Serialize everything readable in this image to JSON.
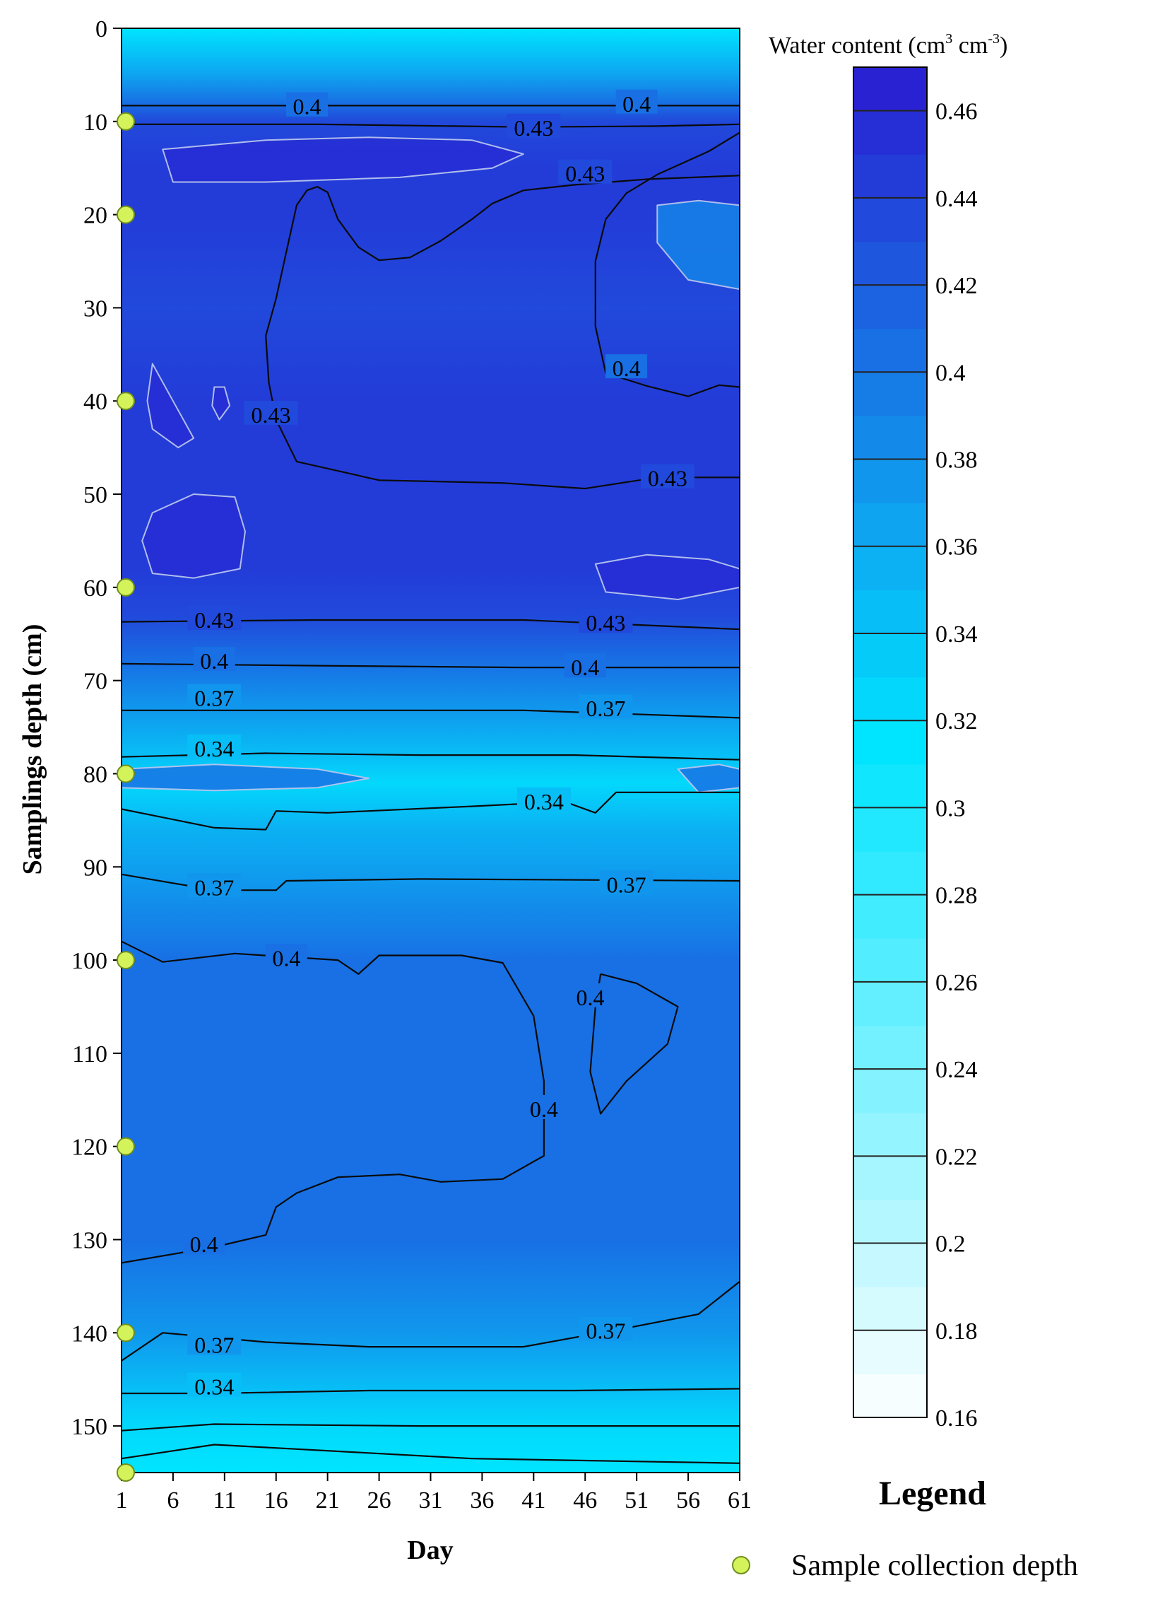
{
  "chart_data": {
    "type": "heatmap",
    "xlabel": "Day",
    "ylabel": "Samplings depth (cm)",
    "x_ticks": [
      1,
      6,
      11,
      16,
      21,
      26,
      31,
      36,
      41,
      46,
      51,
      56,
      61
    ],
    "y_ticks": [
      0,
      10,
      20,
      30,
      40,
      50,
      60,
      70,
      80,
      90,
      100,
      110,
      120,
      130,
      140,
      150
    ],
    "xlim": [
      1,
      61
    ],
    "ylim": [
      0,
      155
    ],
    "y_inverted": true,
    "colorbar": {
      "title": "Water content (cm³ cm⁻³)",
      "title_main": "Water content (cm",
      "title_sup1": "3",
      "title_mid": " cm",
      "title_sup2": "-3",
      "title_end": ")",
      "min": 0.16,
      "max": 0.47,
      "step": 0.01,
      "tick_values": [
        0.16,
        0.18,
        0.2,
        0.22,
        0.24,
        0.26,
        0.28,
        0.3,
        0.32,
        0.34,
        0.36,
        0.38,
        0.4,
        0.42,
        0.44,
        0.46
      ],
      "tick_labels": [
        "0.16",
        "0.18",
        "0.2",
        "0.22",
        "0.24",
        "0.26",
        "0.28",
        "0.3",
        "0.32",
        "0.34",
        "0.36",
        "0.38",
        "0.4",
        "0.42",
        "0.44",
        "0.46"
      ],
      "color_low": "#ffffff",
      "color_mid": "#00e5ff",
      "color_high": "#2a1bd0"
    },
    "depth_profile": [
      {
        "depth": 0,
        "value": 0.31
      },
      {
        "depth": 2,
        "value": 0.33
      },
      {
        "depth": 5,
        "value": 0.36
      },
      {
        "depth": 8,
        "value": 0.4
      },
      {
        "depth": 10,
        "value": 0.43
      },
      {
        "depth": 15,
        "value": 0.445
      },
      {
        "depth": 20,
        "value": 0.44
      },
      {
        "depth": 30,
        "value": 0.435
      },
      {
        "depth": 40,
        "value": 0.44
      },
      {
        "depth": 50,
        "value": 0.44
      },
      {
        "depth": 58,
        "value": 0.445
      },
      {
        "depth": 63,
        "value": 0.43
      },
      {
        "depth": 68,
        "value": 0.4
      },
      {
        "depth": 73,
        "value": 0.37
      },
      {
        "depth": 78,
        "value": 0.34
      },
      {
        "depth": 81,
        "value": 0.325
      },
      {
        "depth": 86,
        "value": 0.35
      },
      {
        "depth": 92,
        "value": 0.37
      },
      {
        "depth": 100,
        "value": 0.4
      },
      {
        "depth": 110,
        "value": 0.405
      },
      {
        "depth": 120,
        "value": 0.405
      },
      {
        "depth": 130,
        "value": 0.4
      },
      {
        "depth": 140,
        "value": 0.37
      },
      {
        "depth": 146,
        "value": 0.34
      },
      {
        "depth": 150,
        "value": 0.32
      },
      {
        "depth": 155,
        "value": 0.31
      }
    ],
    "contour_lines": [
      {
        "level": 0.4,
        "label": "0.4",
        "points": [
          [
            1,
            8.3
          ],
          [
            61,
            8.3
          ]
        ],
        "labels": [
          {
            "day": 19,
            "depth": 8.4
          },
          {
            "day": 51,
            "depth": 8.1
          }
        ]
      },
      {
        "level": 0.43,
        "label": "0.43",
        "points": [
          [
            1,
            10.3
          ],
          [
            20,
            10.3
          ],
          [
            40,
            10.6
          ],
          [
            53,
            10.5
          ],
          [
            61,
            10.3
          ]
        ],
        "labels": [
          {
            "day": 41,
            "depth": 10.7
          }
        ]
      },
      {
        "level": 0.43,
        "label": "0.43",
        "points": [
          [
            61,
            15.8
          ],
          [
            52,
            16.2
          ],
          [
            45,
            16.8
          ],
          [
            40,
            17.4
          ],
          [
            37,
            18.8
          ],
          [
            35,
            20.5
          ],
          [
            32,
            22.8
          ],
          [
            29,
            24.6
          ],
          [
            26,
            24.9
          ],
          [
            24,
            23.5
          ],
          [
            22,
            20.5
          ],
          [
            21,
            17.6
          ],
          [
            20,
            17.0
          ],
          [
            19,
            17.4
          ],
          [
            18,
            19
          ],
          [
            17,
            24
          ],
          [
            16,
            29
          ],
          [
            15,
            33
          ],
          [
            15.3,
            38
          ],
          [
            16,
            42
          ],
          [
            18,
            46.5
          ],
          [
            26,
            48.5
          ],
          [
            38,
            48.8
          ],
          [
            46,
            49.4
          ],
          [
            53,
            48.2
          ],
          [
            61,
            48.2
          ]
        ],
        "labels": [
          {
            "day": 46,
            "depth": 15.6
          },
          {
            "day": 15.5,
            "depth": 41.5
          },
          {
            "day": 54,
            "depth": 48.3
          }
        ]
      },
      {
        "level": 0.4,
        "label": "0.4",
        "points": [
          [
            61,
            11.2
          ],
          [
            58,
            13.2
          ],
          [
            53,
            15.7
          ],
          [
            50,
            17.7
          ],
          [
            48,
            20.5
          ],
          [
            47,
            25
          ],
          [
            47,
            32
          ],
          [
            48,
            37
          ],
          [
            52,
            38.4
          ],
          [
            56,
            39.5
          ],
          [
            59,
            38.3
          ],
          [
            61,
            38.5
          ]
        ],
        "labels": [
          {
            "day": 50,
            "depth": 36.5
          }
        ]
      },
      {
        "level": 0.43,
        "label": "0.43",
        "points": [
          [
            1,
            63.7
          ],
          [
            20,
            63.5
          ],
          [
            40,
            63.5
          ],
          [
            61,
            64.5
          ]
        ],
        "labels": [
          {
            "day": 10,
            "depth": 63.5
          },
          {
            "day": 48,
            "depth": 63.8
          }
        ]
      },
      {
        "level": 0.4,
        "label": "0.4",
        "points": [
          [
            1,
            68.2
          ],
          [
            20,
            68.4
          ],
          [
            40,
            68.6
          ],
          [
            61,
            68.6
          ]
        ],
        "labels": [
          {
            "day": 10,
            "depth": 67.9
          },
          {
            "day": 46,
            "depth": 68.6
          }
        ]
      },
      {
        "level": 0.37,
        "label": "0.37",
        "points": [
          [
            1,
            73.2
          ],
          [
            20,
            73.2
          ],
          [
            40,
            73.2
          ],
          [
            61,
            74
          ]
        ],
        "labels": [
          {
            "day": 10,
            "depth": 71.9
          },
          {
            "day": 48,
            "depth": 73
          }
        ]
      },
      {
        "level": 0.34,
        "label": "0.34",
        "points": [
          [
            1,
            78.2
          ],
          [
            15,
            77.8
          ],
          [
            30,
            78
          ],
          [
            45,
            78
          ],
          [
            61,
            78.5
          ]
        ],
        "labels": [
          {
            "day": 10,
            "depth": 77.3
          }
        ]
      },
      {
        "level": 0.34,
        "label": "0.34",
        "points": [
          [
            1,
            83.8
          ],
          [
            10,
            85.8
          ],
          [
            15,
            86
          ],
          [
            16,
            84
          ],
          [
            21,
            84.2
          ],
          [
            35,
            83.5
          ],
          [
            44,
            83
          ],
          [
            47,
            84.2
          ],
          [
            49,
            82
          ],
          [
            61,
            82
          ]
        ],
        "labels": [
          {
            "day": 42,
            "depth": 83
          }
        ]
      },
      {
        "level": 0.37,
        "label": "0.37",
        "points": [
          [
            1,
            90.8
          ],
          [
            10,
            92.5
          ],
          [
            16,
            92.5
          ],
          [
            17,
            91.5
          ],
          [
            30,
            91.3
          ],
          [
            46,
            91.4
          ],
          [
            61,
            91.5
          ]
        ],
        "labels": [
          {
            "day": 10,
            "depth": 92.2
          },
          {
            "day": 50,
            "depth": 91.9
          }
        ]
      },
      {
        "level": 0.4,
        "label": "0.4",
        "points": [
          [
            1,
            98
          ],
          [
            5,
            100.2
          ],
          [
            12,
            99.3
          ],
          [
            22,
            100
          ],
          [
            24,
            101.5
          ],
          [
            26,
            99.5
          ],
          [
            34,
            99.5
          ],
          [
            38,
            100.3
          ],
          [
            41,
            106
          ],
          [
            42,
            113
          ],
          [
            42,
            121
          ],
          [
            38,
            123.5
          ],
          [
            32,
            123.8
          ],
          [
            28,
            123
          ],
          [
            22,
            123.3
          ],
          [
            18,
            125
          ],
          [
            16,
            126.5
          ],
          [
            15,
            129.5
          ],
          [
            10,
            130.8
          ],
          [
            1,
            132.5
          ]
        ],
        "labels": [
          {
            "day": 17,
            "depth": 99.8
          },
          {
            "day": 42,
            "depth": 116
          },
          {
            "day": 9,
            "depth": 130.5
          }
        ]
      },
      {
        "level": 0.4,
        "label": "0.4",
        "points": [
          [
            47.5,
            101.5
          ],
          [
            51,
            102.5
          ],
          [
            55,
            105
          ],
          [
            54,
            109
          ],
          [
            50,
            113
          ],
          [
            47.5,
            116.5
          ],
          [
            46.5,
            112
          ],
          [
            47,
            105
          ],
          [
            47.5,
            101.5
          ]
        ],
        "labels": [
          {
            "day": 46.5,
            "depth": 104
          }
        ]
      },
      {
        "level": 0.37,
        "label": "0.37",
        "points": [
          [
            1,
            143
          ],
          [
            5,
            140
          ],
          [
            15,
            141
          ],
          [
            25,
            141.5
          ],
          [
            40,
            141.5
          ],
          [
            50,
            139.5
          ],
          [
            57,
            138
          ],
          [
            61,
            134.5
          ]
        ],
        "labels": [
          {
            "day": 10,
            "depth": 141.3
          },
          {
            "day": 48,
            "depth": 139.8
          }
        ]
      },
      {
        "level": 0.34,
        "label": "0.34",
        "points": [
          [
            1,
            146.5
          ],
          [
            10,
            146.5
          ],
          [
            25,
            146.2
          ],
          [
            45,
            146.2
          ],
          [
            61,
            146
          ]
        ],
        "labels": [
          {
            "day": 10,
            "depth": 145.8
          }
        ]
      },
      {
        "level": 0.32,
        "label": "",
        "points": [
          [
            1,
            150.5
          ],
          [
            10,
            149.8
          ],
          [
            30,
            150
          ],
          [
            61,
            150
          ]
        ],
        "labels": []
      },
      {
        "level": 0.31,
        "label": "",
        "points": [
          [
            1,
            153.5
          ],
          [
            10,
            152
          ],
          [
            35,
            153.5
          ],
          [
            61,
            154
          ]
        ],
        "labels": []
      }
    ],
    "features": [
      {
        "kind": "high",
        "points": [
          [
            4,
            36
          ],
          [
            6,
            40
          ],
          [
            8,
            44
          ],
          [
            6.5,
            45
          ],
          [
            4,
            43
          ],
          [
            3.5,
            40
          ]
        ]
      },
      {
        "kind": "high",
        "points": [
          [
            4,
            52
          ],
          [
            8,
            50
          ],
          [
            12,
            50.3
          ],
          [
            13,
            54
          ],
          [
            12.5,
            58
          ],
          [
            8,
            59
          ],
          [
            4,
            58.5
          ],
          [
            3,
            55
          ]
        ]
      },
      {
        "kind": "high",
        "points": [
          [
            47,
            57.5
          ],
          [
            52,
            56.5
          ],
          [
            58,
            57
          ],
          [
            61,
            58
          ],
          [
            61,
            60
          ],
          [
            55,
            61.3
          ],
          [
            48,
            60.5
          ]
        ]
      },
      {
        "kind": "high",
        "points": [
          [
            5,
            13
          ],
          [
            15,
            12
          ],
          [
            25,
            11.7
          ],
          [
            35,
            12
          ],
          [
            40,
            13.5
          ],
          [
            37,
            15
          ],
          [
            28,
            16
          ],
          [
            15,
            16.5
          ],
          [
            6,
            16.5
          ]
        ]
      },
      {
        "kind": "high",
        "points": [
          [
            10,
            38.5
          ],
          [
            11,
            38.5
          ],
          [
            11.5,
            40.5
          ],
          [
            10.5,
            42
          ],
          [
            9.8,
            40.5
          ]
        ]
      },
      {
        "kind": "low",
        "points": [
          [
            53,
            19
          ],
          [
            57,
            18.5
          ],
          [
            61,
            19
          ],
          [
            61,
            28
          ],
          [
            56,
            27
          ],
          [
            53,
            23
          ]
        ]
      },
      {
        "kind": "low",
        "points": [
          [
            1,
            79.5
          ],
          [
            10,
            79
          ],
          [
            20,
            79.5
          ],
          [
            25,
            80.5
          ],
          [
            20,
            81.5
          ],
          [
            10,
            81.8
          ],
          [
            1,
            81.5
          ]
        ]
      },
      {
        "kind": "low",
        "points": [
          [
            55,
            79.5
          ],
          [
            59,
            79
          ],
          [
            61,
            79.5
          ],
          [
            61,
            81.5
          ],
          [
            57,
            82
          ]
        ]
      }
    ]
  },
  "legend": {
    "title": "Legend",
    "marker_label": "Sample collection depth",
    "marker_color": "#d4f25a",
    "sample_depths": [
      10,
      20,
      40,
      60,
      80,
      100,
      120,
      140,
      155
    ]
  }
}
